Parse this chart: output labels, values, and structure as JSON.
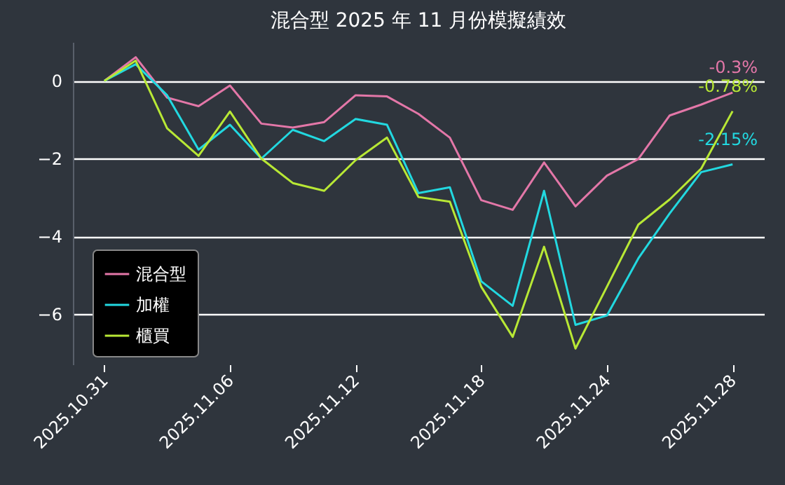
{
  "chart_data": {
    "type": "line",
    "title": "混合型 2025 年 11 月份模擬績效",
    "categories": [
      "2025.10.31",
      null,
      null,
      null,
      "2025.11.06",
      null,
      null,
      null,
      "2025.11.12",
      null,
      null,
      null,
      "2025.11.18",
      null,
      null,
      null,
      "2025.11.24",
      null,
      null,
      null,
      "2025.11.28"
    ],
    "series": [
      {
        "name": "混合型",
        "color": "#e377a8",
        "values": [
          0,
          0.61,
          -0.43,
          -0.65,
          -0.12,
          -1.1,
          -1.2,
          -1.06,
          -0.37,
          -0.4,
          -0.85,
          -1.46,
          -3.07,
          -3.32,
          -2.1,
          -3.23,
          -2.44,
          -2.01,
          -0.89,
          -0.61,
          -0.3
        ],
        "value_labels": [
          null,
          null,
          null,
          null,
          null,
          null,
          null,
          null,
          null,
          null,
          null,
          null,
          null,
          null,
          null,
          null,
          null,
          null,
          null,
          null,
          "-0.3%"
        ]
      },
      {
        "name": "加權",
        "color": "#22d8e0",
        "values": [
          0,
          0.43,
          -0.37,
          -1.77,
          -1.13,
          -2.0,
          -1.26,
          -1.55,
          -0.98,
          -1.13,
          -2.89,
          -2.74,
          -5.16,
          -5.79,
          -2.83,
          -6.28,
          -6.04,
          -4.57,
          -3.41,
          -2.35,
          -2.15
        ],
        "value_labels": [
          null,
          null,
          null,
          null,
          null,
          null,
          null,
          null,
          null,
          null,
          null,
          null,
          null,
          null,
          null,
          null,
          null,
          null,
          null,
          null,
          "-2.15%"
        ]
      },
      {
        "name": "櫃買",
        "color": "#b8e835",
        "values": [
          0,
          0.52,
          -1.22,
          -1.93,
          -0.79,
          -2.0,
          -2.63,
          -2.83,
          -2.04,
          -1.46,
          -2.99,
          -3.11,
          -5.3,
          -6.59,
          -4.27,
          -6.89,
          -5.3,
          -3.7,
          -3.05,
          -2.26,
          -0.78
        ],
        "value_labels": [
          null,
          null,
          null,
          null,
          null,
          null,
          null,
          null,
          null,
          null,
          null,
          null,
          null,
          null,
          null,
          null,
          null,
          null,
          null,
          null,
          "-0.78%"
        ]
      }
    ],
    "ylim": [
      -7.3,
      1
    ],
    "yticks": [
      -6,
      -4,
      -2,
      0
    ],
    "grid": "y",
    "legend": "bottom left",
    "line_style": "solid"
  }
}
